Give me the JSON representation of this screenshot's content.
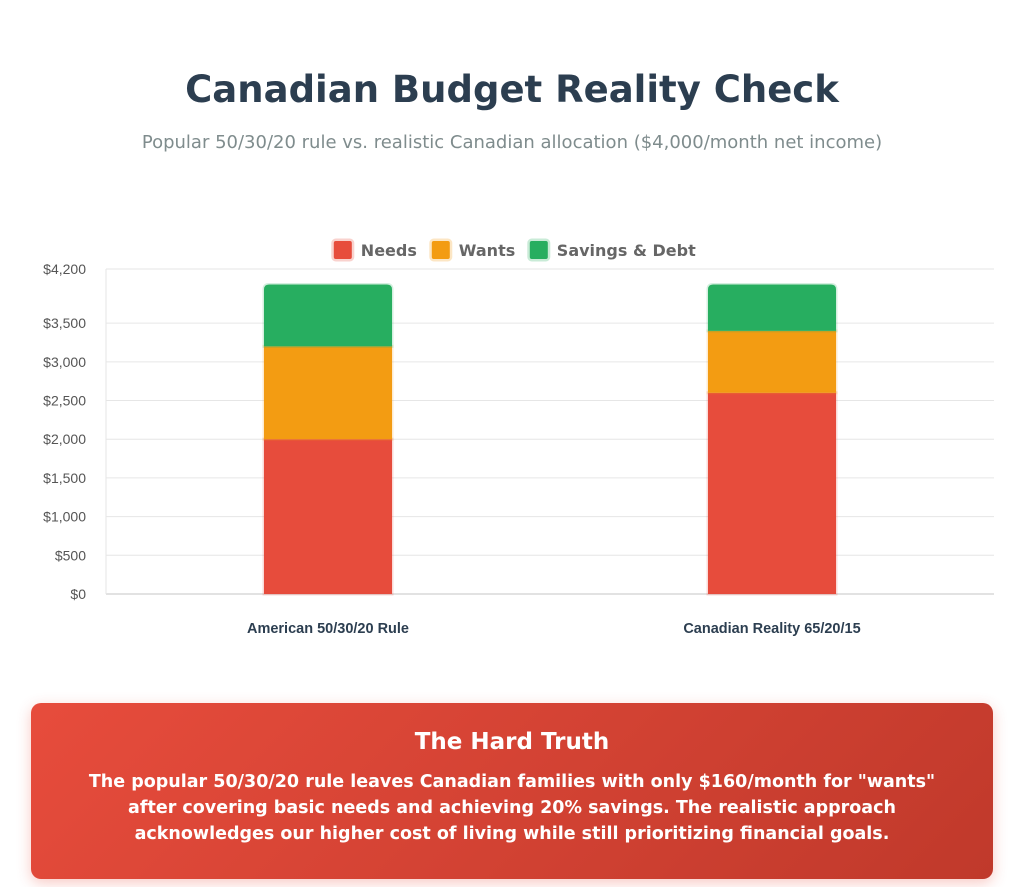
{
  "page": {
    "title": "Canadian Budget Reality Check",
    "subtitle": "Popular 50/30/20 rule vs. realistic Canadian allocation ($4,000/month net income)"
  },
  "chart_data": {
    "type": "bar",
    "stacked": true,
    "categories": [
      "American 50/30/20 Rule",
      "Canadian Reality 65/20/15"
    ],
    "series": [
      {
        "name": "Needs",
        "values": [
          2000,
          2600
        ],
        "color": "#e74c3c"
      },
      {
        "name": "Wants",
        "values": [
          1200,
          800
        ],
        "color": "#f39c12"
      },
      {
        "name": "Savings & Debt",
        "values": [
          800,
          600
        ],
        "color": "#27ae60"
      }
    ],
    "y_ticks": [
      {
        "value": 0,
        "label": "$0"
      },
      {
        "value": 500,
        "label": "$500"
      },
      {
        "value": 1000,
        "label": "$1,000"
      },
      {
        "value": 1500,
        "label": "$1,500"
      },
      {
        "value": 2000,
        "label": "$2,000"
      },
      {
        "value": 2500,
        "label": "$2,500"
      },
      {
        "value": 3000,
        "label": "$3,000"
      },
      {
        "value": 3500,
        "label": "$3,500"
      },
      {
        "value": 4200,
        "label": "$4,200"
      }
    ],
    "ylim": [
      0,
      4200
    ],
    "grid": true,
    "legend_position": "top"
  },
  "callout": {
    "title": "The Hard Truth",
    "text": "The popular 50/30/20 rule leaves Canadian families with only $160/month for \"wants\" after covering basic needs and achieving 20% savings. The realistic approach acknowledges our higher cost of living while still prioritizing financial goals."
  }
}
